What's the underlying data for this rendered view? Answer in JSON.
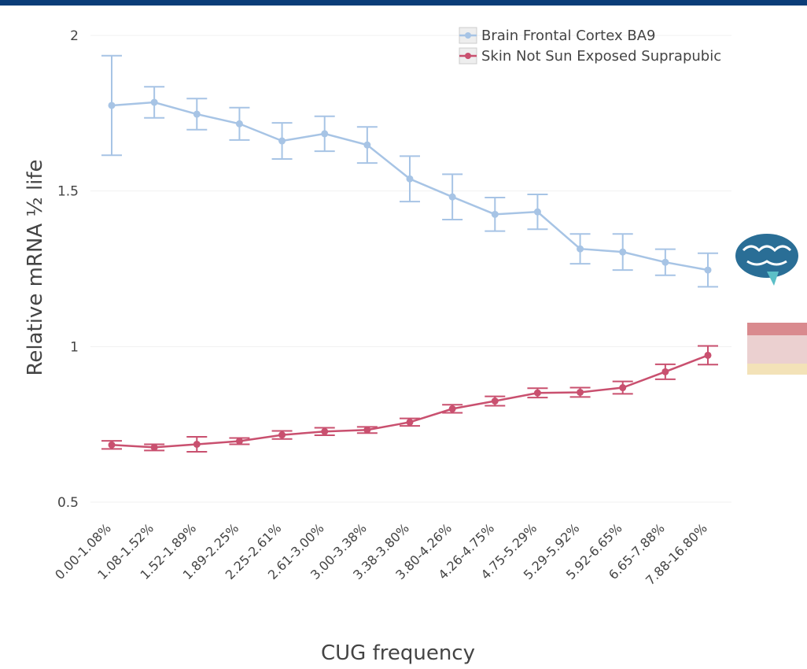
{
  "chart_data": {
    "type": "line",
    "x_label": "CUG frequency",
    "y_label": "Relative mRNA ½ life",
    "categories": [
      "0.00-1.08%",
      "1.08-1.52%",
      "1.52-1.89%",
      "1.89-2.25%",
      "2.25-2.61%",
      "2.61-3.00%",
      "3.00-3.38%",
      "3.38-3.80%",
      "3.80-4.26%",
      "4.26-4.75%",
      "4.75-5.29%",
      "5.29-5.92%",
      "5.92-6.65%",
      "6.65-7.88%",
      "7.88-16.80%"
    ],
    "series": [
      {
        "name": "Brain Frontal Cortex BA9",
        "color": "#a7c4e5",
        "values": [
          1.775,
          1.785,
          1.747,
          1.716,
          1.661,
          1.684,
          1.648,
          1.539,
          1.481,
          1.425,
          1.433,
          1.314,
          1.304,
          1.271,
          1.246
        ],
        "errors": [
          0.16,
          0.05,
          0.05,
          0.052,
          0.058,
          0.056,
          0.058,
          0.073,
          0.073,
          0.054,
          0.056,
          0.048,
          0.058,
          0.042,
          0.054
        ]
      },
      {
        "name": "Skin Not Sun Exposed Suprapubic",
        "color": "#c9506f",
        "values": [
          0.684,
          0.676,
          0.686,
          0.696,
          0.716,
          0.727,
          0.732,
          0.757,
          0.8,
          0.825,
          0.851,
          0.853,
          0.868,
          0.919,
          0.972
        ],
        "errors": [
          0.013,
          0.01,
          0.024,
          0.01,
          0.013,
          0.012,
          0.01,
          0.012,
          0.013,
          0.015,
          0.015,
          0.015,
          0.02,
          0.024,
          0.03
        ]
      }
    ],
    "ylim": [
      0.5,
      2
    ],
    "yticks": [
      0.5,
      1,
      1.5,
      2
    ],
    "grid": true,
    "legend": "top-right"
  }
}
